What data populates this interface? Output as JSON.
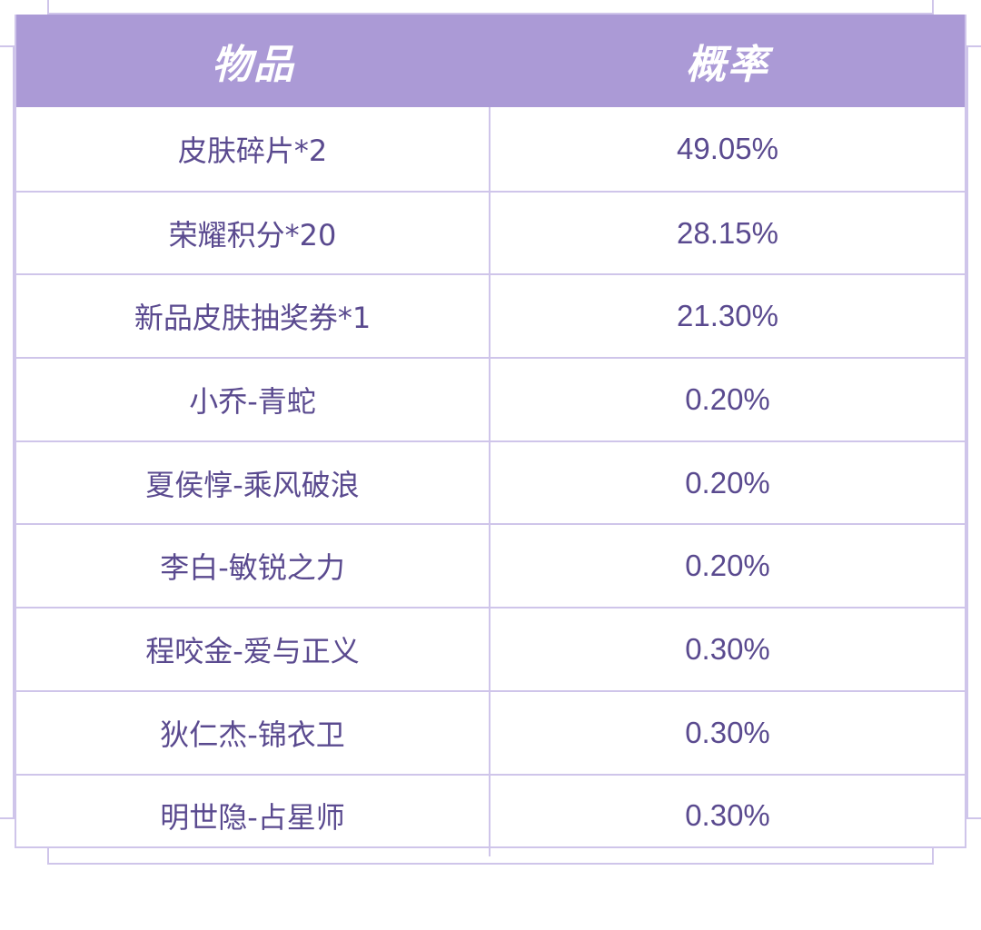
{
  "table": {
    "headers": {
      "item": "物品",
      "probability": "概率"
    },
    "rows": [
      {
        "item": "皮肤碎片*2",
        "probability": "49.05%"
      },
      {
        "item": "荣耀积分*20",
        "probability": "28.15%"
      },
      {
        "item": "新品皮肤抽奖券*1",
        "probability": "21.30%"
      },
      {
        "item": "小乔-青蛇",
        "probability": "0.20%"
      },
      {
        "item": "夏侯惇-乘风破浪",
        "probability": "0.20%"
      },
      {
        "item": "李白-敏锐之力",
        "probability": "0.20%"
      },
      {
        "item": "程咬金-爱与正义",
        "probability": "0.30%"
      },
      {
        "item": "狄仁杰-锦衣卫",
        "probability": "0.30%"
      },
      {
        "item": "明世隐-占星师",
        "probability": "0.30%"
      }
    ]
  },
  "colors": {
    "header_bg": "#ab9ad6",
    "border": "#cfc5ea",
    "text": "#5a4a8f"
  }
}
